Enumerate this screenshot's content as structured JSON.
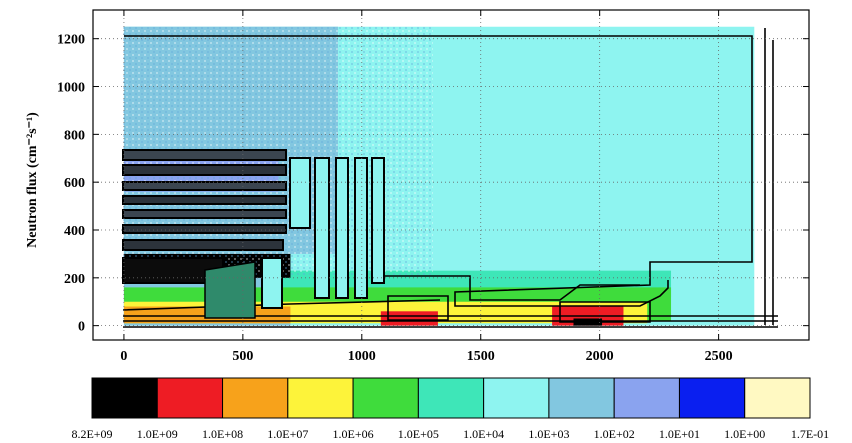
{
  "chart_data": {
    "type": "heatmap",
    "title": "",
    "xlabel": "",
    "ylabel": "Neutron flux (cm⁻²s⁻¹)",
    "xlim": [
      -130,
      2880
    ],
    "ylim": [
      -60,
      1320
    ],
    "xticks": [
      0,
      500,
      1000,
      1500,
      2000,
      2500
    ],
    "yticks": [
      0,
      200,
      400,
      600,
      800,
      1000,
      1200
    ],
    "grid": true,
    "colorbar": {
      "placement": "bottom",
      "colors": [
        "#000000",
        "#ee1c24",
        "#f7a21b",
        "#fdf33a",
        "#3fdc3c",
        "#3ee6b8",
        "#8ef4f0",
        "#82c7e0",
        "#8aa3ef",
        "#0a1ff0",
        "#fff9c2"
      ],
      "labels": [
        "8.2E+09",
        "1.0E+09",
        "1.0E+08",
        "1.0E+07",
        "1.0E+06",
        "1.0E+05",
        "1.0E+04",
        "1.0E+03",
        "1.0E+02",
        "1.0E+01",
        "1.0E+00",
        "1.7E-01"
      ]
    },
    "regions": [
      {
        "x": [
          0,
          2650
        ],
        "y": [
          0,
          1250
        ],
        "level": "1.0E+04"
      },
      {
        "x": [
          0,
          900
        ],
        "y": [
          300,
          1250
        ],
        "level": "1.0E+03"
      },
      {
        "x": [
          0,
          700
        ],
        "y": [
          0,
          730
        ],
        "level": "1.0E+03"
      },
      {
        "x": [
          0,
          650
        ],
        "y": [
          560,
          700
        ],
        "level": "1.0E+02"
      },
      {
        "x": [
          650,
          2300
        ],
        "y": [
          120,
          230
        ],
        "level": "1.0E+05"
      },
      {
        "x": [
          0,
          2300
        ],
        "y": [
          20,
          160
        ],
        "level": "1.0E+06"
      },
      {
        "x": [
          0,
          2200
        ],
        "y": [
          10,
          100
        ],
        "level": "1.0E+07"
      },
      {
        "x": [
          0,
          700
        ],
        "y": [
          10,
          80
        ],
        "level": "1.0E+08"
      },
      {
        "x": [
          1080,
          1320
        ],
        "y": [
          0,
          60
        ],
        "level": "1.0E+09"
      },
      {
        "x": [
          1800,
          2100
        ],
        "y": [
          0,
          80
        ],
        "level": "1.0E+09"
      },
      {
        "x": [
          1890,
          2010
        ],
        "y": [
          0,
          30
        ],
        "level": "8.2E+09"
      },
      {
        "x": [
          0,
          700
        ],
        "y": [
          200,
          300
        ],
        "level": "8.2E+09"
      }
    ]
  }
}
